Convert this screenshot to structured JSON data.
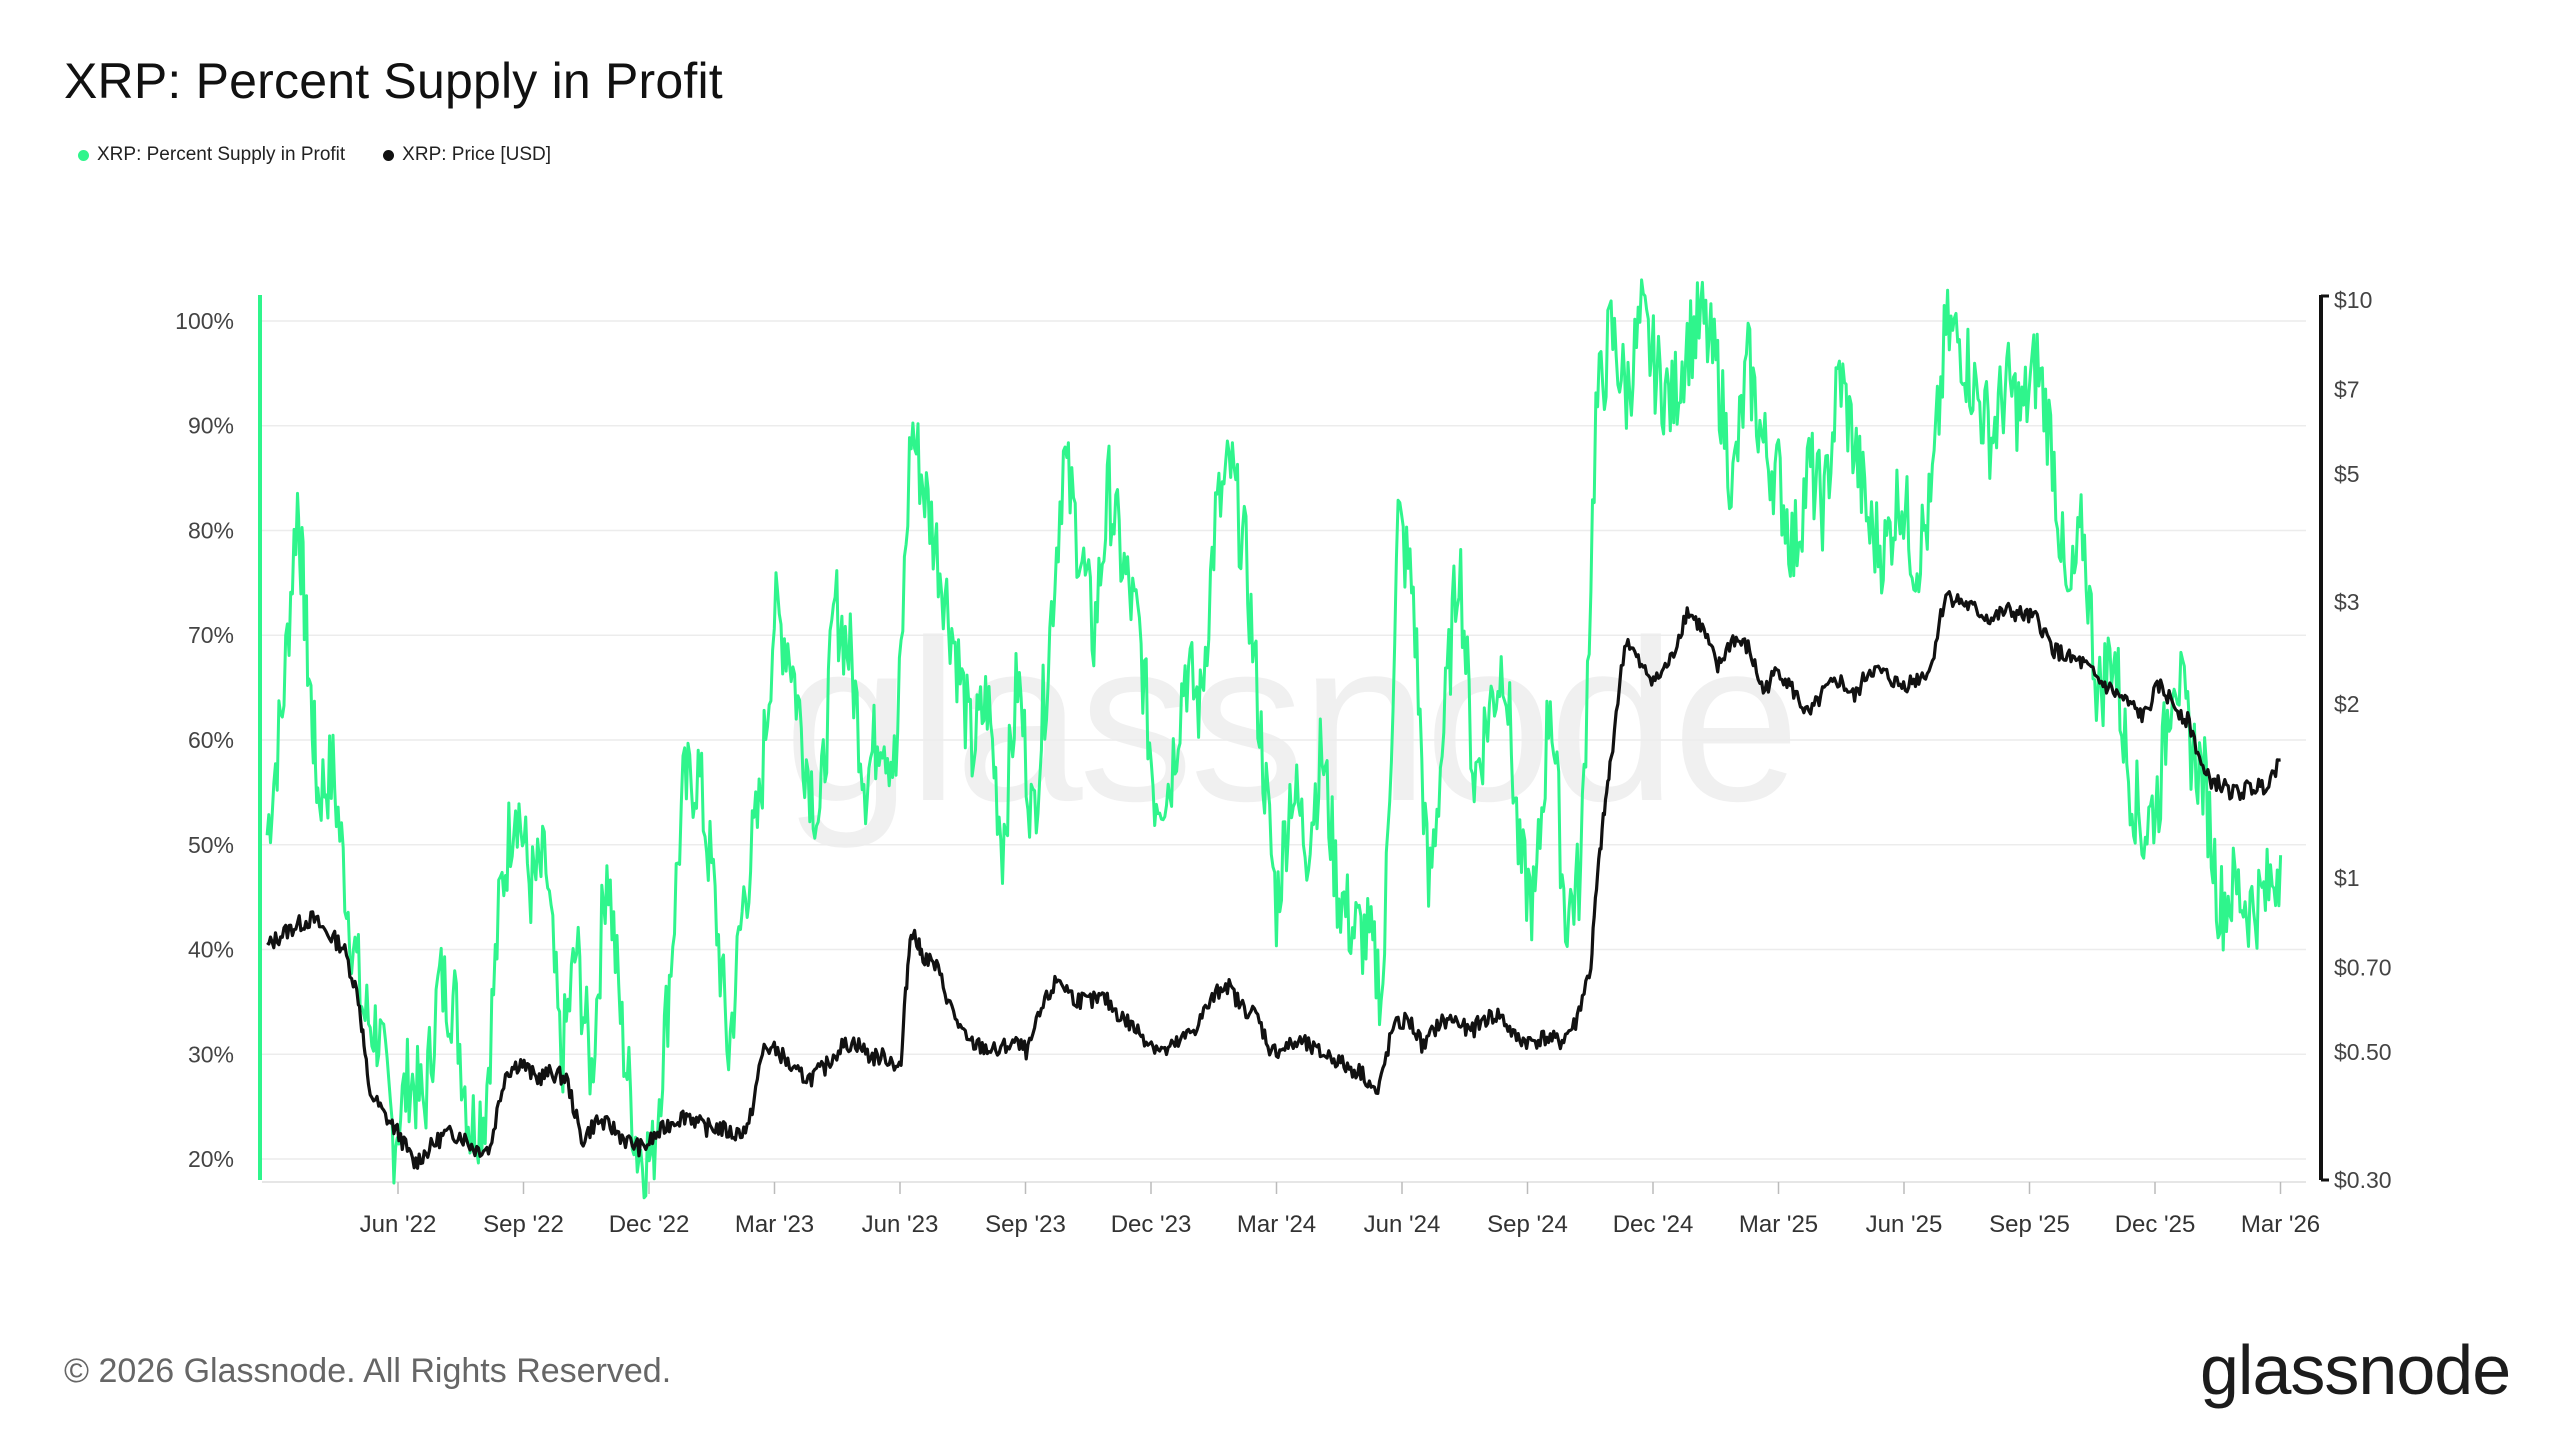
{
  "title": "XRP: Percent Supply in Profit",
  "legend": [
    {
      "label": "XRP: Percent Supply in Profit",
      "color": "#2ff58c"
    },
    {
      "label": "XRP: Price [USD]",
      "color": "#111111"
    }
  ],
  "footer": "© 2026 Glassnode. All Rights Reserved.",
  "brand": "glassnode",
  "watermark": "glassnode",
  "chart_data": {
    "type": "line",
    "title": "XRP: Percent Supply in Profit",
    "x_labels": [
      "Jun '22",
      "Sep '22",
      "Dec '22",
      "Mar '23",
      "Jun '23",
      "Sep '23",
      "Dec '23",
      "Mar '24",
      "Jun '24",
      "Sep '24",
      "Dec '24",
      "Mar '25",
      "Jun '25",
      "Sep '25",
      "Dec '25",
      "Mar '26"
    ],
    "x_range": [
      2022.22,
      2026.25
    ],
    "y_left": {
      "ticks": [
        "20%",
        "30%",
        "40%",
        "50%",
        "60%",
        "70%",
        "80%",
        "90%",
        "100%"
      ],
      "range": [
        18,
        102
      ]
    },
    "y_right": {
      "scale": "log",
      "ticks": [
        "$0.30",
        "$0.50",
        "$0.70",
        "$1",
        "$2",
        "$3",
        "$5",
        "$7",
        "$10"
      ],
      "tick_values": [
        0.3,
        0.5,
        0.7,
        1,
        2,
        3,
        5,
        7,
        10
      ],
      "range": [
        0.3,
        10
      ]
    },
    "series": [
      {
        "name": "XRP: Percent Supply in Profit",
        "axis": "left",
        "color": "#2ff58c",
        "points": [
          [
            2022.23,
            51
          ],
          [
            2022.26,
            63
          ],
          [
            2022.29,
            83
          ],
          [
            2022.31,
            68
          ],
          [
            2022.33,
            55
          ],
          [
            2022.36,
            57
          ],
          [
            2022.39,
            44
          ],
          [
            2022.42,
            34
          ],
          [
            2022.45,
            32
          ],
          [
            2022.48,
            22
          ],
          [
            2022.51,
            28
          ],
          [
            2022.54,
            25
          ],
          [
            2022.57,
            37
          ],
          [
            2022.6,
            35
          ],
          [
            2022.63,
            23
          ],
          [
            2022.66,
            25
          ],
          [
            2022.69,
            45
          ],
          [
            2022.72,
            55
          ],
          [
            2022.75,
            46
          ],
          [
            2022.78,
            48
          ],
          [
            2022.81,
            29
          ],
          [
            2022.84,
            40
          ],
          [
            2022.87,
            28
          ],
          [
            2022.9,
            49
          ],
          [
            2022.93,
            32
          ],
          [
            2022.96,
            21
          ],
          [
            2022.99,
            20
          ],
          [
            2023.02,
            35
          ],
          [
            2023.05,
            55
          ],
          [
            2023.08,
            57
          ],
          [
            2023.11,
            46
          ],
          [
            2023.14,
            30
          ],
          [
            2023.17,
            45
          ],
          [
            2023.2,
            53
          ],
          [
            2023.23,
            72
          ],
          [
            2023.26,
            69
          ],
          [
            2023.29,
            59
          ],
          [
            2023.32,
            52
          ],
          [
            2023.35,
            73
          ],
          [
            2023.38,
            68
          ],
          [
            2023.41,
            56
          ],
          [
            2023.44,
            62
          ],
          [
            2023.47,
            57
          ],
          [
            2023.5,
            90
          ],
          [
            2023.53,
            83
          ],
          [
            2023.56,
            76
          ],
          [
            2023.59,
            68
          ],
          [
            2023.62,
            59
          ],
          [
            2023.65,
            64
          ],
          [
            2023.68,
            50
          ],
          [
            2023.71,
            66
          ],
          [
            2023.74,
            52
          ],
          [
            2023.77,
            68
          ],
          [
            2023.8,
            87
          ],
          [
            2023.83,
            79
          ],
          [
            2023.86,
            70
          ],
          [
            2023.89,
            84
          ],
          [
            2023.92,
            76
          ],
          [
            2023.95,
            70
          ],
          [
            2023.98,
            55
          ],
          [
            2024.01,
            56
          ],
          [
            2024.04,
            67
          ],
          [
            2024.07,
            63
          ],
          [
            2024.1,
            81
          ],
          [
            2024.13,
            86
          ],
          [
            2024.16,
            77
          ],
          [
            2024.19,
            60
          ],
          [
            2024.22,
            44
          ],
          [
            2024.25,
            56
          ],
          [
            2024.28,
            50
          ],
          [
            2024.31,
            59
          ],
          [
            2024.34,
            46
          ],
          [
            2024.37,
            42
          ],
          [
            2024.4,
            41
          ],
          [
            2024.43,
            36
          ],
          [
            2024.46,
            81
          ],
          [
            2024.49,
            74
          ],
          [
            2024.52,
            45
          ],
          [
            2024.55,
            61
          ],
          [
            2024.58,
            78
          ],
          [
            2024.61,
            56
          ],
          [
            2024.64,
            63
          ],
          [
            2024.67,
            68
          ],
          [
            2024.7,
            48
          ],
          [
            2024.73,
            44
          ],
          [
            2024.76,
            65
          ],
          [
            2024.79,
            43
          ],
          [
            2024.82,
            47
          ],
          [
            2024.85,
            91
          ],
          [
            2024.88,
            99
          ],
          [
            2024.91,
            93
          ],
          [
            2024.94,
            100
          ],
          [
            2024.97,
            95
          ],
          [
            2025.0,
            92
          ],
          [
            2025.03,
            98
          ],
          [
            2025.06,
            100
          ],
          [
            2025.09,
            95
          ],
          [
            2025.12,
            84
          ],
          [
            2025.15,
            96
          ],
          [
            2025.18,
            88
          ],
          [
            2025.21,
            85
          ],
          [
            2025.24,
            78
          ],
          [
            2025.27,
            86
          ],
          [
            2025.3,
            82
          ],
          [
            2025.33,
            95
          ],
          [
            2025.36,
            88
          ],
          [
            2025.39,
            80
          ],
          [
            2025.42,
            78
          ],
          [
            2025.45,
            84
          ],
          [
            2025.48,
            77
          ],
          [
            2025.51,
            82
          ],
          [
            2025.54,
            99
          ],
          [
            2025.57,
            98
          ],
          [
            2025.6,
            93
          ],
          [
            2025.63,
            89
          ],
          [
            2025.66,
            94
          ],
          [
            2025.69,
            91
          ],
          [
            2025.72,
            96
          ],
          [
            2025.75,
            88
          ],
          [
            2025.78,
            72
          ],
          [
            2025.81,
            80
          ],
          [
            2025.84,
            64
          ],
          [
            2025.87,
            69
          ],
          [
            2025.9,
            57
          ],
          [
            2025.93,
            51
          ],
          [
            2025.96,
            55
          ],
          [
            2025.99,
            68
          ],
          [
            2026.02,
            60
          ],
          [
            2026.05,
            56
          ],
          [
            2026.08,
            44
          ],
          [
            2026.11,
            46
          ],
          [
            2026.14,
            44
          ],
          [
            2026.17,
            45
          ],
          [
            2026.2,
            49
          ]
        ]
      },
      {
        "name": "XRP: Price [USD]",
        "axis": "right",
        "color": "#111111",
        "points": [
          [
            2022.23,
            0.76
          ],
          [
            2022.26,
            0.8
          ],
          [
            2022.29,
            0.83
          ],
          [
            2022.32,
            0.85
          ],
          [
            2022.35,
            0.8
          ],
          [
            2022.38,
            0.76
          ],
          [
            2022.41,
            0.62
          ],
          [
            2022.43,
            0.43
          ],
          [
            2022.46,
            0.39
          ],
          [
            2022.49,
            0.36
          ],
          [
            2022.52,
            0.32
          ],
          [
            2022.55,
            0.34
          ],
          [
            2022.58,
            0.36
          ],
          [
            2022.61,
            0.36
          ],
          [
            2022.64,
            0.34
          ],
          [
            2022.67,
            0.34
          ],
          [
            2022.7,
            0.46
          ],
          [
            2022.73,
            0.48
          ],
          [
            2022.76,
            0.45
          ],
          [
            2022.79,
            0.46
          ],
          [
            2022.82,
            0.45
          ],
          [
            2022.85,
            0.35
          ],
          [
            2022.88,
            0.38
          ],
          [
            2022.91,
            0.37
          ],
          [
            2022.94,
            0.35
          ],
          [
            2022.97,
            0.34
          ],
          [
            2023.0,
            0.36
          ],
          [
            2023.03,
            0.38
          ],
          [
            2023.06,
            0.39
          ],
          [
            2023.09,
            0.37
          ],
          [
            2023.12,
            0.37
          ],
          [
            2023.15,
            0.36
          ],
          [
            2023.18,
            0.37
          ],
          [
            2023.21,
            0.51
          ],
          [
            2023.24,
            0.5
          ],
          [
            2023.27,
            0.46
          ],
          [
            2023.3,
            0.45
          ],
          [
            2023.33,
            0.47
          ],
          [
            2023.36,
            0.51
          ],
          [
            2023.39,
            0.52
          ],
          [
            2023.42,
            0.49
          ],
          [
            2023.45,
            0.49
          ],
          [
            2023.48,
            0.47
          ],
          [
            2023.5,
            0.82
          ],
          [
            2023.52,
            0.74
          ],
          [
            2023.55,
            0.7
          ],
          [
            2023.58,
            0.59
          ],
          [
            2023.61,
            0.52
          ],
          [
            2023.64,
            0.51
          ],
          [
            2023.67,
            0.5
          ],
          [
            2023.7,
            0.52
          ],
          [
            2023.73,
            0.5
          ],
          [
            2023.76,
            0.6
          ],
          [
            2023.79,
            0.67
          ],
          [
            2023.82,
            0.62
          ],
          [
            2023.85,
            0.61
          ],
          [
            2023.88,
            0.62
          ],
          [
            2023.91,
            0.58
          ],
          [
            2023.94,
            0.55
          ],
          [
            2023.97,
            0.52
          ],
          [
            2024.0,
            0.5
          ],
          [
            2024.03,
            0.52
          ],
          [
            2024.06,
            0.55
          ],
          [
            2024.09,
            0.61
          ],
          [
            2024.12,
            0.66
          ],
          [
            2024.15,
            0.6
          ],
          [
            2024.18,
            0.58
          ],
          [
            2024.21,
            0.5
          ],
          [
            2024.24,
            0.51
          ],
          [
            2024.27,
            0.52
          ],
          [
            2024.3,
            0.5
          ],
          [
            2024.33,
            0.49
          ],
          [
            2024.36,
            0.47
          ],
          [
            2024.39,
            0.46
          ],
          [
            2024.42,
            0.42
          ],
          [
            2024.45,
            0.55
          ],
          [
            2024.48,
            0.57
          ],
          [
            2024.51,
            0.51
          ],
          [
            2024.54,
            0.56
          ],
          [
            2024.57,
            0.57
          ],
          [
            2024.6,
            0.54
          ],
          [
            2024.63,
            0.57
          ],
          [
            2024.66,
            0.58
          ],
          [
            2024.69,
            0.53
          ],
          [
            2024.72,
            0.52
          ],
          [
            2024.75,
            0.53
          ],
          [
            2024.78,
            0.52
          ],
          [
            2024.81,
            0.56
          ],
          [
            2024.84,
            0.7
          ],
          [
            2024.86,
            1.15
          ],
          [
            2024.88,
            1.6
          ],
          [
            2024.91,
            2.6
          ],
          [
            2024.94,
            2.3
          ],
          [
            2024.97,
            2.2
          ],
          [
            2025.0,
            2.4
          ],
          [
            2025.03,
            2.9
          ],
          [
            2025.06,
            2.7
          ],
          [
            2025.09,
            2.3
          ],
          [
            2025.12,
            2.6
          ],
          [
            2025.15,
            2.5
          ],
          [
            2025.18,
            2.1
          ],
          [
            2025.21,
            2.3
          ],
          [
            2025.24,
            2.1
          ],
          [
            2025.27,
            1.9
          ],
          [
            2025.3,
            2.1
          ],
          [
            2025.33,
            2.2
          ],
          [
            2025.36,
            2.05
          ],
          [
            2025.39,
            2.3
          ],
          [
            2025.42,
            2.25
          ],
          [
            2025.45,
            2.15
          ],
          [
            2025.48,
            2.2
          ],
          [
            2025.51,
            2.3
          ],
          [
            2025.54,
            3.1
          ],
          [
            2025.57,
            3.0
          ],
          [
            2025.6,
            2.9
          ],
          [
            2025.63,
            2.8
          ],
          [
            2025.66,
            2.9
          ],
          [
            2025.69,
            2.85
          ],
          [
            2025.72,
            2.8
          ],
          [
            2025.75,
            2.5
          ],
          [
            2025.78,
            2.4
          ],
          [
            2025.81,
            2.35
          ],
          [
            2025.84,
            2.2
          ],
          [
            2025.87,
            2.1
          ],
          [
            2025.9,
            2.0
          ],
          [
            2025.93,
            1.9
          ],
          [
            2025.96,
            2.15
          ],
          [
            2025.99,
            2.0
          ],
          [
            2026.02,
            1.85
          ],
          [
            2026.05,
            1.5
          ],
          [
            2026.08,
            1.45
          ],
          [
            2026.11,
            1.4
          ],
          [
            2026.14,
            1.43
          ],
          [
            2026.17,
            1.45
          ],
          [
            2026.2,
            1.6
          ]
        ]
      }
    ]
  }
}
